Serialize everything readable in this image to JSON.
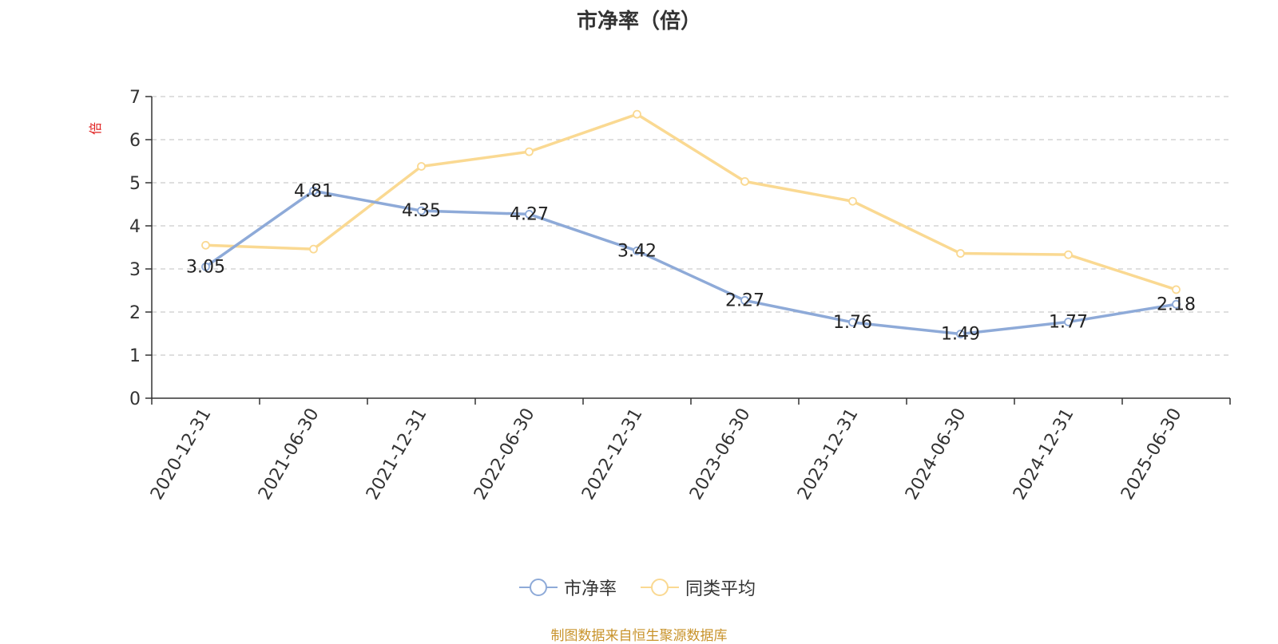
{
  "chart_data": {
    "type": "line",
    "title": "市净率（倍）",
    "ylabel": "倍",
    "xlabel": "",
    "categories": [
      "2020-12-31",
      "2021-06-30",
      "2021-12-31",
      "2022-06-30",
      "2022-12-31",
      "2023-06-30",
      "2023-12-31",
      "2024-06-30",
      "2024-12-31",
      "2025-06-30"
    ],
    "ylim": [
      0,
      7
    ],
    "yticks": [
      0,
      1,
      2,
      3,
      4,
      5,
      6,
      7
    ],
    "grid": true,
    "legend_position": "bottom",
    "series": [
      {
        "name": "市净率",
        "color": "#8eaad8",
        "show_labels": true,
        "values": [
          3.05,
          4.81,
          4.35,
          4.27,
          3.42,
          2.27,
          1.76,
          1.49,
          1.77,
          2.18
        ]
      },
      {
        "name": "同类平均",
        "color": "#fad992",
        "show_labels": false,
        "values": [
          3.55,
          3.46,
          5.38,
          5.72,
          6.59,
          5.03,
          4.57,
          3.36,
          3.33,
          2.52
        ]
      }
    ]
  },
  "source_note": "制图数据来自恒生聚源数据库",
  "colors": {
    "ylabel": "#e02020",
    "axis": "#333333",
    "grid": "#cccccc"
  }
}
